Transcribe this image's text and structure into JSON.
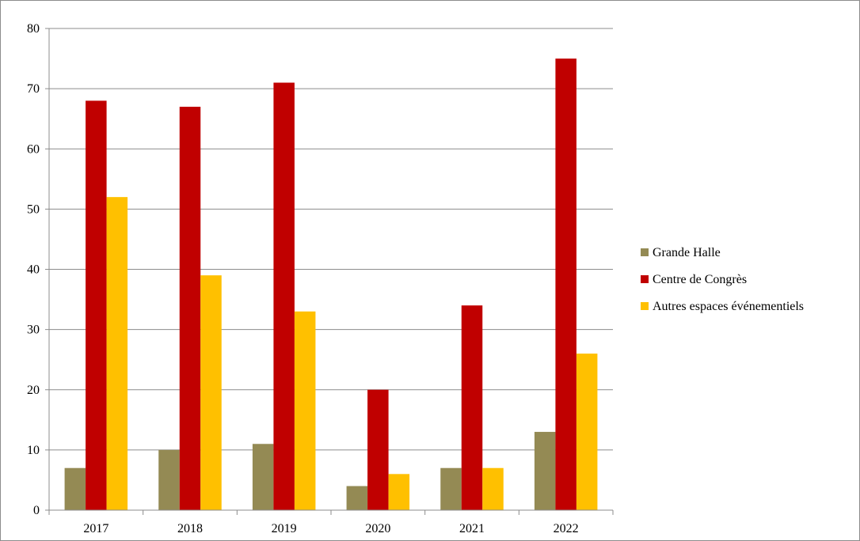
{
  "chart_data": {
    "type": "bar",
    "title": "",
    "xlabel": "",
    "ylabel": "",
    "categories": [
      "2017",
      "2018",
      "2019",
      "2020",
      "2021",
      "2022"
    ],
    "ylim": [
      0,
      80
    ],
    "yticks": [
      0,
      10,
      20,
      30,
      40,
      50,
      60,
      70,
      80
    ],
    "grid": true,
    "legend_position": "right",
    "series": [
      {
        "name": "Grande Halle",
        "color": "#948a54",
        "values": [
          7,
          10,
          11,
          4,
          7,
          13
        ]
      },
      {
        "name": "Centre de Congrès",
        "color": "#c00000",
        "values": [
          68,
          67,
          71,
          20,
          34,
          75
        ]
      },
      {
        "name": "Autres espaces événementiels",
        "color": "#ffc000",
        "values": [
          52,
          39,
          33,
          6,
          7,
          26
        ]
      }
    ]
  }
}
